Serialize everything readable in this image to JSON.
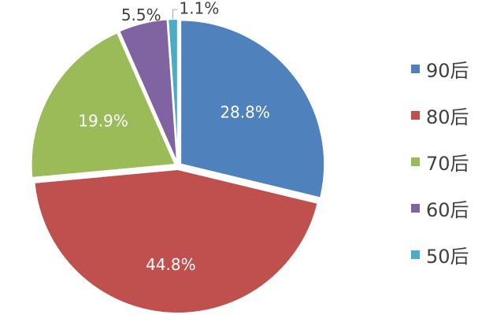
{
  "chart_data": {
    "type": "pie",
    "title": "",
    "categories": [
      "90后",
      "80后",
      "70后",
      "60后",
      "50后"
    ],
    "values": [
      28.8,
      44.8,
      19.9,
      5.5,
      1.1
    ],
    "labels": [
      "28.8%",
      "44.8%",
      "19.9%",
      "5.5%",
      "1.1%"
    ],
    "colors": [
      "#4f81bd",
      "#c0504d",
      "#9bbb59",
      "#8064a2",
      "#4bacc6"
    ],
    "start_angle": "12 o'clock",
    "direction": "clockwise",
    "exploded": true,
    "legend": {
      "position": "right",
      "entries": [
        "90后",
        "80后",
        "70后",
        "60后",
        "50后"
      ]
    }
  }
}
